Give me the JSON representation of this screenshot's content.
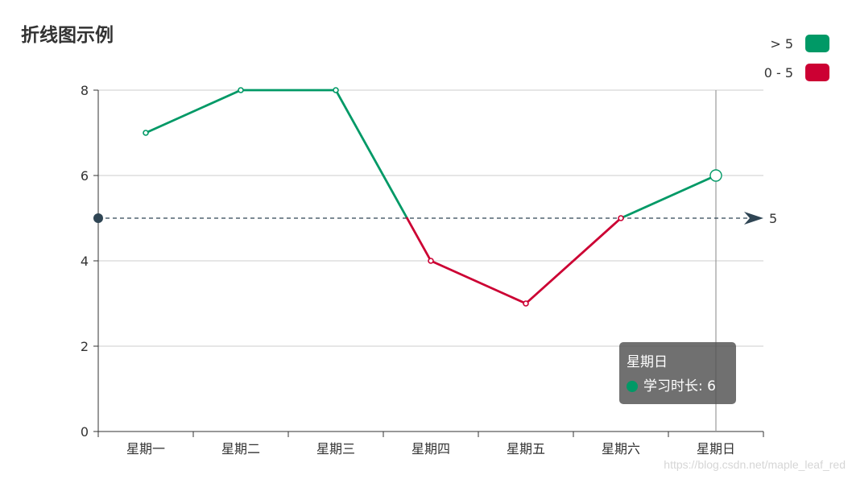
{
  "title": "折线图示例",
  "legend": {
    "items": [
      {
        "label": "> 5",
        "color": "#009966"
      },
      {
        "label": "0 - 5",
        "color": "#cc0033"
      }
    ]
  },
  "tooltip": {
    "category": "星期日",
    "series_label": "学习时长: 6",
    "color": "#009966"
  },
  "watermark": "https://blog.csdn.net/maple_leaf_red",
  "chart_data": {
    "type": "line",
    "title": "折线图示例",
    "categories": [
      "星期一",
      "星期二",
      "星期三",
      "星期四",
      "星期五",
      "星期六",
      "星期日"
    ],
    "series": [
      {
        "name": "学习时长",
        "values": [
          7,
          8,
          8,
          4,
          3,
          5,
          6
        ]
      }
    ],
    "ylim": [
      0,
      8
    ],
    "yticks": [
      0,
      2,
      4,
      6,
      8
    ],
    "grid": true,
    "threshold": 5,
    "threshold_label": "5",
    "visual_map": [
      {
        "range": "> 5",
        "color": "#009966"
      },
      {
        "range": "0 - 5",
        "color": "#cc0033"
      }
    ],
    "highlighted_category": "星期日",
    "legend_position": "top-right"
  }
}
